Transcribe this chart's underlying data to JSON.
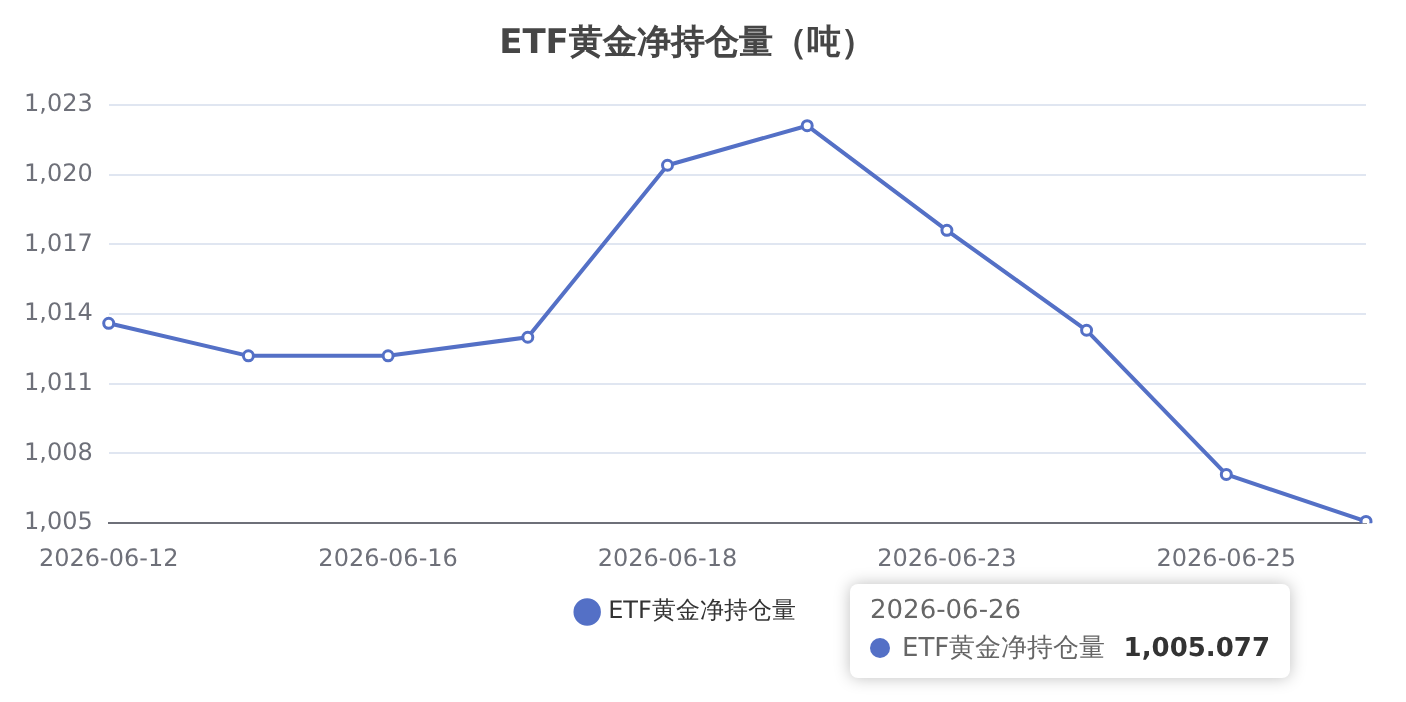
{
  "chart_data": {
    "type": "line",
    "title": "ETF黄金净持仓量（吨）",
    "categories": [
      "2026-06-12",
      null,
      "2026-06-16",
      null,
      "2026-06-18",
      null,
      "2026-06-23",
      null,
      "2026-06-25",
      null
    ],
    "series": [
      {
        "name": "ETF黄金净持仓量",
        "color": "#5470c6",
        "values": [
          1013.6,
          1012.2,
          1012.2,
          1013.0,
          1020.4,
          1022.1,
          1017.6,
          1013.3,
          1007.1,
          1005.077
        ]
      }
    ],
    "ylim": [
      1005,
      1023
    ],
    "yticks": [
      {
        "value": 1005,
        "label": "1,005"
      },
      {
        "value": 1008,
        "label": "1,008"
      },
      {
        "value": 1011,
        "label": "1,011"
      },
      {
        "value": 1014,
        "label": "1,014"
      },
      {
        "value": 1017,
        "label": "1,017"
      },
      {
        "value": 1020,
        "label": "1,020"
      },
      {
        "value": 1023,
        "label": "1,023"
      }
    ],
    "grid": "y",
    "legend": "bottom",
    "marker": "circle",
    "line_style": "solid",
    "annotations": [
      "2026-06-26",
      "1,005.077"
    ]
  }
}
